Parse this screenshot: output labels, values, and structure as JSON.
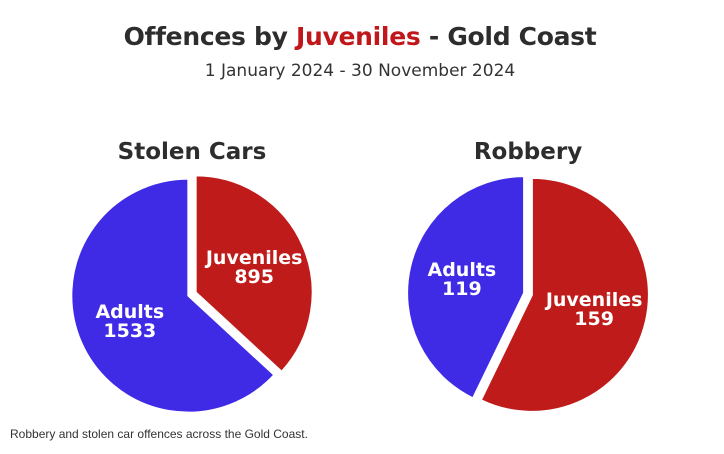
{
  "title_prefix": "Offences by",
  "title_accent": "Juveniles",
  "title_suffix": "- Gold Coast",
  "subtitle": "1 January 2024 - 30 November 2024",
  "caption": "Robbery and stolen car offences across the Gold Coast.",
  "colors": {
    "adults": "#3f2ae6",
    "juveniles": "#bf1b1b",
    "title_accent": "#c0171a"
  },
  "chart_data": [
    {
      "type": "pie",
      "title": "Stolen Cars",
      "slices": [
        {
          "label": "Juveniles",
          "value": 895
        },
        {
          "label": "Adults",
          "value": 1533
        }
      ]
    },
    {
      "type": "pie",
      "title": "Robbery",
      "slices": [
        {
          "label": "Juveniles",
          "value": 159
        },
        {
          "label": "Adults",
          "value": 119
        }
      ]
    }
  ]
}
